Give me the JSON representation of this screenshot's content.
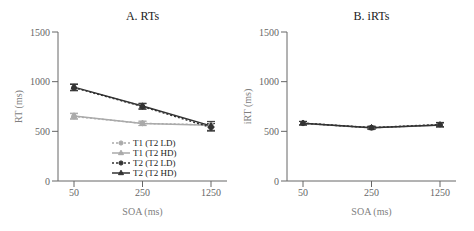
{
  "chart_data": [
    {
      "type": "line",
      "title": "A. RTs",
      "x_label": "SOA (ms)",
      "y_label": "RT (ms)",
      "categories": [
        "50",
        "250",
        "1250"
      ],
      "ylim": [
        0,
        1500
      ],
      "yticks": [
        0,
        500,
        1000,
        1500
      ],
      "grid": false,
      "legend": "lower left",
      "series": [
        {
          "name": "T1 (T2 LD)",
          "color": "#aaaaaa",
          "marker": "circle",
          "line_style": "dotted",
          "values": [
            650,
            580,
            565
          ],
          "errors": [
            28,
            22,
            18
          ]
        },
        {
          "name": "T1 (T2 HD)",
          "color": "#aaaaaa",
          "marker": "triangle",
          "line_style": "solid",
          "values": [
            655,
            580,
            560
          ],
          "errors": [
            28,
            22,
            18
          ]
        },
        {
          "name": "T2 (T2 LD)",
          "color": "#333333",
          "marker": "circle",
          "line_style": "dotted",
          "values": [
            940,
            750,
            540
          ],
          "errors": [
            32,
            28,
            38
          ]
        },
        {
          "name": "T2 (T2 HD)",
          "color": "#333333",
          "marker": "triangle",
          "line_style": "solid",
          "values": [
            945,
            755,
            555
          ],
          "errors": [
            32,
            28,
            45
          ]
        }
      ]
    },
    {
      "type": "line",
      "title": "B. iRTs",
      "x_label": "SOA (ms)",
      "y_label": "iRT (ms)",
      "categories": [
        "50",
        "250",
        "1250"
      ],
      "ylim": [
        0,
        1500
      ],
      "yticks": [
        0,
        500,
        1000,
        1500
      ],
      "grid": false,
      "series": [
        {
          "name": "T1 (T2 LD)",
          "color": "#aaaaaa",
          "marker": "circle",
          "line_style": "dotted",
          "values": [
            580,
            535,
            565
          ],
          "errors": [
            18,
            14,
            18
          ]
        },
        {
          "name": "T1 (T2 HD)",
          "color": "#aaaaaa",
          "marker": "triangle",
          "line_style": "solid",
          "values": [
            580,
            535,
            562
          ],
          "errors": [
            18,
            14,
            18
          ]
        },
        {
          "name": "T2 (T2 LD)",
          "color": "#333333",
          "marker": "circle",
          "line_style": "dotted",
          "values": [
            582,
            537,
            568
          ],
          "errors": [
            18,
            14,
            22
          ]
        },
        {
          "name": "T2 (T2 HD)",
          "color": "#333333",
          "marker": "triangle",
          "line_style": "solid",
          "values": [
            582,
            537,
            565
          ],
          "errors": [
            18,
            14,
            22
          ]
        }
      ]
    }
  ]
}
